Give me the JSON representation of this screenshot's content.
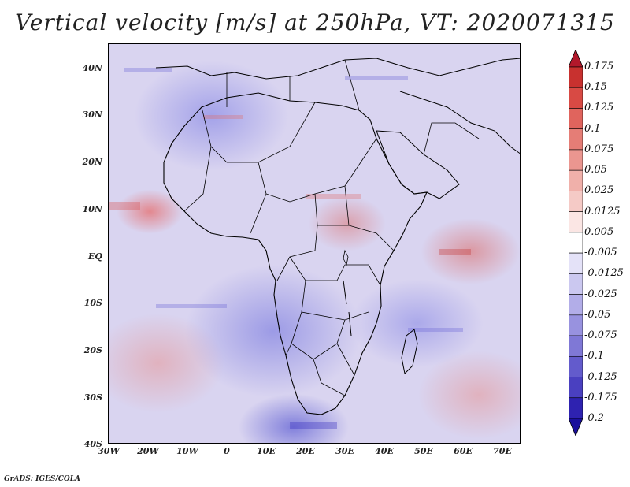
{
  "title": "Vertical velocity [m/s] at 250hPa, VT: 2020071315",
  "credit": "GrADS: IGES/COLA",
  "y_axis": [
    "40N",
    "30N",
    "20N",
    "10N",
    "EQ",
    "10S",
    "20S",
    "30S",
    "40S"
  ],
  "x_axis": [
    "30W",
    "20W",
    "10W",
    "0",
    "10E",
    "20E",
    "30E",
    "40E",
    "50E",
    "60E",
    "70E"
  ],
  "colorbar": {
    "labels": [
      "0.175",
      "0.15",
      "0.125",
      "0.1",
      "0.075",
      "0.05",
      "0.025",
      "0.0125",
      "0.005",
      "-0.005",
      "-0.0125",
      "-0.025",
      "-0.05",
      "-0.075",
      "-0.1",
      "-0.125",
      "-0.175",
      "-0.2"
    ],
    "colors": [
      "#b2182b",
      "#c8312f",
      "#d84a44",
      "#e0645d",
      "#e57d76",
      "#eb9690",
      "#f0b0aa",
      "#f5cac6",
      "#fbe6e4",
      "#ffffff",
      "#e4e2f8",
      "#cbc8f0",
      "#b2ade8",
      "#9892df",
      "#7f78d6",
      "#635bcc",
      "#4a40c0",
      "#2e22b0",
      "#1a0f9c"
    ]
  },
  "map": {
    "variable": "Vertical velocity",
    "units": "m/s",
    "level": "250hPa",
    "valid_time": "2020071315",
    "lon_range": [
      "30W",
      "75E"
    ],
    "lat_range": [
      "40S",
      "45N"
    ]
  }
}
